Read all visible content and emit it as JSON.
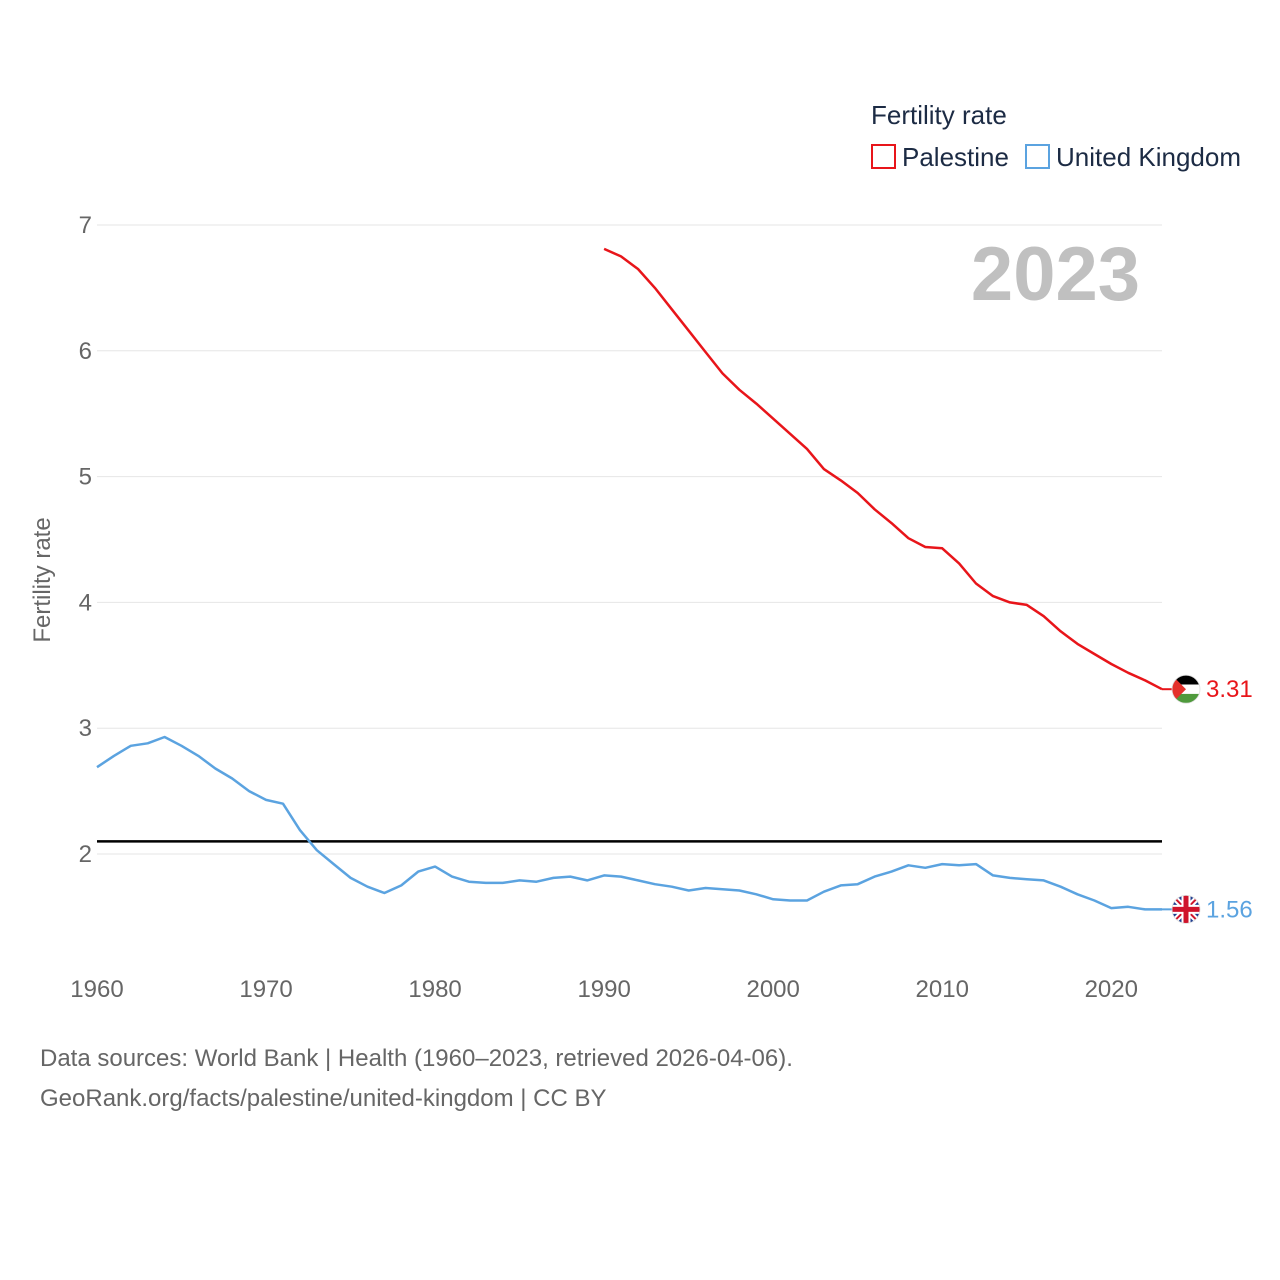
{
  "chart_data": {
    "type": "line",
    "legend_title": "Fertility rate",
    "ylabel": "Fertility rate",
    "xlim": [
      1960,
      2023
    ],
    "ylim": [
      1.0,
      7.0
    ],
    "y_ticks": [
      2,
      3,
      4,
      5,
      6,
      7
    ],
    "x_ticks": [
      1960,
      1970,
      1980,
      1990,
      2000,
      2010,
      2020
    ],
    "year": "2023",
    "reference_line": 2.1,
    "series": [
      {
        "name": "Palestine",
        "color": "#e8151a",
        "end_label": "3.31",
        "flag": "palestine-flag-icon",
        "x": [
          1990,
          1991,
          1992,
          1993,
          1994,
          1995,
          1996,
          1997,
          1998,
          1999,
          2000,
          2001,
          2002,
          2003,
          2004,
          2005,
          2006,
          2007,
          2008,
          2009,
          2010,
          2011,
          2012,
          2013,
          2014,
          2015,
          2016,
          2017,
          2018,
          2019,
          2020,
          2021,
          2022,
          2023
        ],
        "values": [
          6.81,
          6.75,
          6.65,
          6.5,
          6.33,
          6.16,
          5.99,
          5.82,
          5.69,
          5.58,
          5.46,
          5.34,
          5.22,
          5.06,
          4.97,
          4.87,
          4.74,
          4.63,
          4.51,
          4.44,
          4.43,
          4.31,
          4.15,
          4.05,
          4.0,
          3.98,
          3.89,
          3.77,
          3.67,
          3.59,
          3.51,
          3.44,
          3.38,
          3.31
        ]
      },
      {
        "name": "United Kingdom",
        "color": "#5ba3e0",
        "end_label": "1.56",
        "flag": "uk-flag-icon",
        "x": [
          1960,
          1961,
          1962,
          1963,
          1964,
          1965,
          1966,
          1967,
          1968,
          1969,
          1970,
          1971,
          1972,
          1973,
          1974,
          1975,
          1976,
          1977,
          1978,
          1979,
          1980,
          1981,
          1982,
          1983,
          1984,
          1985,
          1986,
          1987,
          1988,
          1989,
          1990,
          1991,
          1992,
          1993,
          1994,
          1995,
          1996,
          1997,
          1998,
          1999,
          2000,
          2001,
          2002,
          2003,
          2004,
          2005,
          2006,
          2007,
          2008,
          2009,
          2010,
          2011,
          2012,
          2013,
          2014,
          2015,
          2016,
          2017,
          2018,
          2019,
          2020,
          2021,
          2022,
          2023
        ],
        "values": [
          2.69,
          2.78,
          2.86,
          2.88,
          2.93,
          2.86,
          2.78,
          2.68,
          2.6,
          2.5,
          2.43,
          2.4,
          2.19,
          2.03,
          1.92,
          1.81,
          1.74,
          1.69,
          1.75,
          1.86,
          1.9,
          1.82,
          1.78,
          1.77,
          1.77,
          1.79,
          1.78,
          1.81,
          1.82,
          1.79,
          1.83,
          1.82,
          1.79,
          1.76,
          1.74,
          1.71,
          1.73,
          1.72,
          1.71,
          1.68,
          1.64,
          1.63,
          1.63,
          1.7,
          1.75,
          1.76,
          1.82,
          1.86,
          1.91,
          1.89,
          1.92,
          1.91,
          1.92,
          1.83,
          1.81,
          1.8,
          1.79,
          1.74,
          1.68,
          1.63,
          1.57,
          1.58,
          1.56,
          1.56
        ]
      }
    ]
  },
  "footer": {
    "line1": "Data sources: World Bank | Health (1960–2023, retrieved 2026-04-06).",
    "line2": "GeoRank.org/facts/palestine/united-kingdom | CC BY"
  }
}
